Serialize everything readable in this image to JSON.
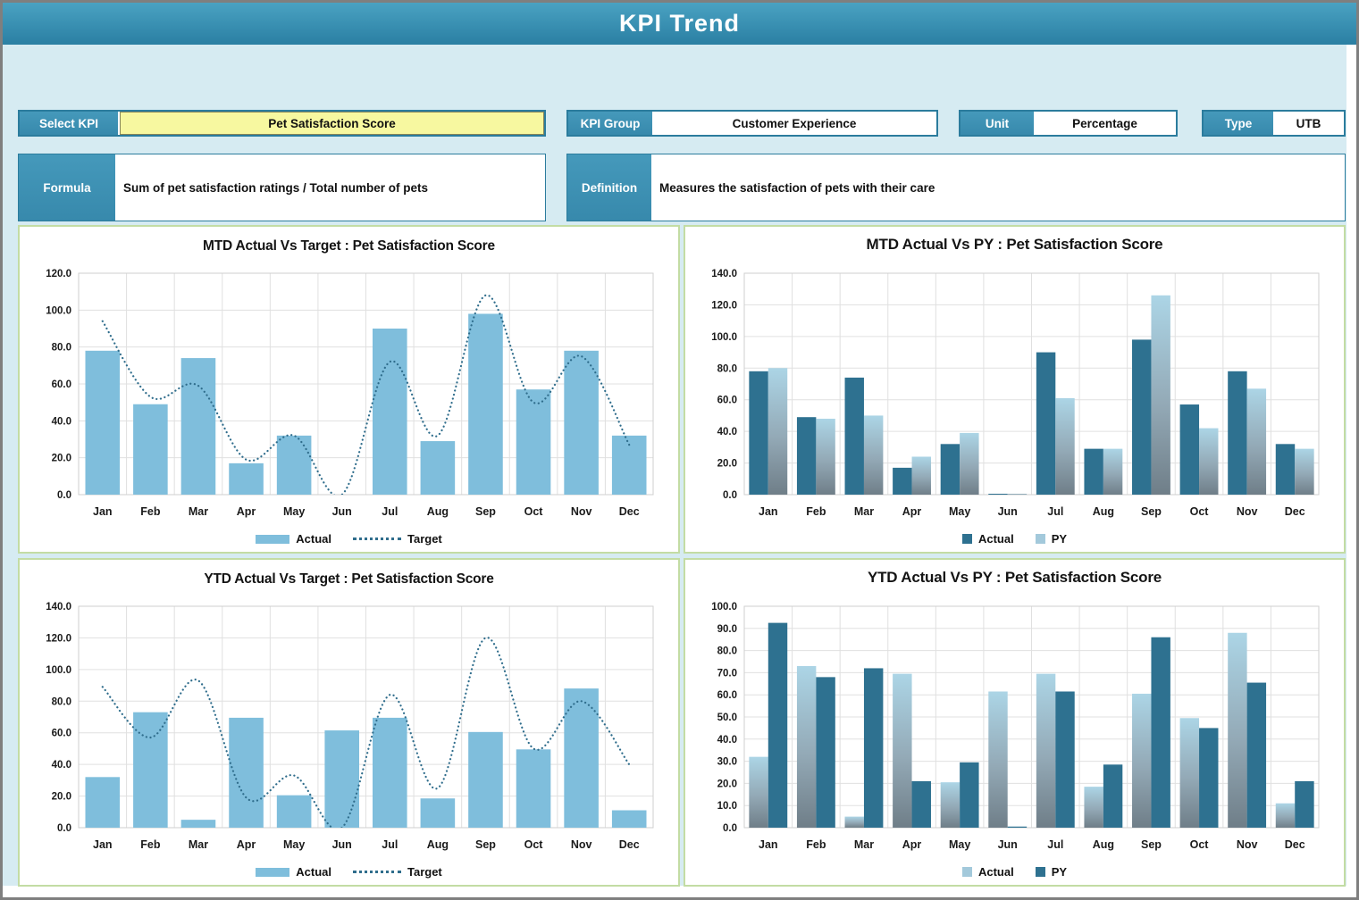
{
  "header": {
    "title": "KPI Trend"
  },
  "controls": {
    "select_kpi": {
      "label": "Select KPI",
      "value": "Pet Satisfaction Score"
    },
    "kpi_group": {
      "label": "KPI Group",
      "value": "Customer Experience"
    },
    "unit": {
      "label": "Unit",
      "value": "Percentage"
    },
    "type": {
      "label": "Type",
      "value": "UTB"
    },
    "formula": {
      "label": "Formula",
      "value": "Sum of pet satisfaction ratings / Total number of pets"
    },
    "definition": {
      "label": "Definition",
      "value": "Measures the satisfaction of pets with their care"
    }
  },
  "colors": {
    "accent_teal": "#3789ac",
    "bar_light": "#7fbedc",
    "bar_dark": "#2e7190",
    "py_grad_top": "#acd5e6",
    "py_grad_mid": "#93a9b6",
    "py_grad_bottom": "#6f7e88",
    "legend_light": "#a3c9db",
    "line": "#2f6d8c",
    "grid": "#e0e0e0",
    "plot_border": "#cfcfcf",
    "yellow_field": "#f7f8a0",
    "page_bg": "#d6ebf2",
    "panel_border": "#c3dca4"
  },
  "chart_data": [
    {
      "type": "bar",
      "title": "MTD Actual Vs Target : Pet Satisfaction Score",
      "categories": [
        "Jan",
        "Feb",
        "Mar",
        "Apr",
        "May",
        "Jun",
        "Jul",
        "Aug",
        "Sep",
        "Oct",
        "Nov",
        "Dec"
      ],
      "ylim": [
        0,
        120
      ],
      "ystep": 20,
      "grid": true,
      "legend_position": "bottom",
      "series": [
        {
          "name": "Actual",
          "type": "bar",
          "style": "light",
          "swatch": "bar",
          "values": [
            78,
            49,
            74,
            17,
            32,
            0,
            90,
            29,
            98,
            57,
            78,
            32
          ]
        },
        {
          "name": "Target",
          "type": "line",
          "style": "dotted",
          "swatch": "dots",
          "values": [
            94,
            53,
            59,
            19,
            32,
            0,
            72,
            32,
            108,
            50,
            75,
            27
          ]
        }
      ]
    },
    {
      "type": "bar",
      "title": "MTD Actual Vs PY : Pet Satisfaction Score",
      "categories": [
        "Jan",
        "Feb",
        "Mar",
        "Apr",
        "May",
        "Jun",
        "Jul",
        "Aug",
        "Sep",
        "Oct",
        "Nov",
        "Dec"
      ],
      "ylim": [
        0,
        140
      ],
      "ystep": 20,
      "grid": true,
      "legend_position": "bottom",
      "series": [
        {
          "name": "Actual",
          "type": "bar",
          "style": "dark",
          "swatch": "square",
          "values": [
            78,
            49,
            74,
            17,
            32,
            0.5,
            90,
            29,
            98,
            57,
            78,
            32
          ]
        },
        {
          "name": "PY",
          "type": "bar",
          "style": "gradient",
          "swatch": "square",
          "values": [
            80,
            48,
            50,
            24,
            39,
            0.5,
            61,
            29,
            126,
            42,
            67,
            29
          ]
        }
      ]
    },
    {
      "type": "bar",
      "title": "YTD Actual Vs Target : Pet Satisfaction Score",
      "categories": [
        "Jan",
        "Feb",
        "Mar",
        "Apr",
        "May",
        "Jun",
        "Jul",
        "Aug",
        "Sep",
        "Oct",
        "Nov",
        "Dec"
      ],
      "ylim": [
        0,
        140
      ],
      "ystep": 20,
      "grid": true,
      "legend_position": "bottom",
      "series": [
        {
          "name": "Actual",
          "type": "bar",
          "style": "light",
          "swatch": "bar",
          "values": [
            32,
            73,
            5,
            69.5,
            20.5,
            61.5,
            69.5,
            18.5,
            60.5,
            49.5,
            88,
            11
          ]
        },
        {
          "name": "Target",
          "type": "line",
          "style": "dotted",
          "swatch": "dots",
          "values": [
            89,
            57,
            93,
            19,
            33,
            0,
            84,
            25,
            120,
            50,
            80,
            40
          ]
        }
      ]
    },
    {
      "type": "bar",
      "title": "YTD Actual Vs PY : Pet Satisfaction Score",
      "categories": [
        "Jan",
        "Feb",
        "Mar",
        "Apr",
        "May",
        "Jun",
        "Jul",
        "Aug",
        "Sep",
        "Oct",
        "Nov",
        "Dec"
      ],
      "ylim": [
        0,
        100
      ],
      "ystep": 10,
      "grid": true,
      "legend_position": "bottom",
      "series": [
        {
          "name": "Actual",
          "type": "bar",
          "style": "gradient",
          "swatch": "square",
          "values": [
            32,
            73,
            5,
            69.5,
            20.5,
            61.5,
            69.5,
            18.5,
            60.5,
            49.5,
            88,
            11
          ]
        },
        {
          "name": "PY",
          "type": "bar",
          "style": "dark",
          "swatch": "square",
          "values": [
            92.5,
            68,
            72,
            21,
            29.5,
            0.5,
            61.5,
            28.5,
            86,
            45,
            65.5,
            21
          ]
        }
      ]
    }
  ]
}
